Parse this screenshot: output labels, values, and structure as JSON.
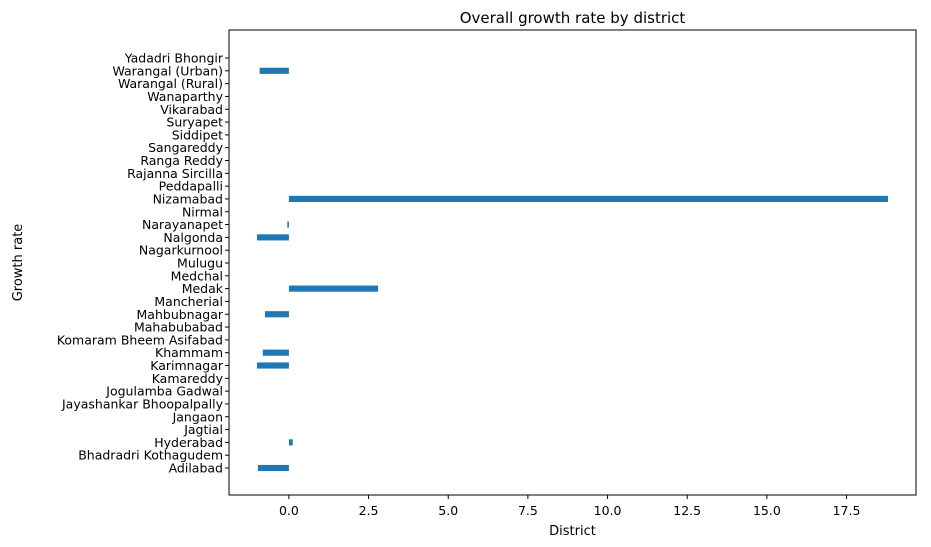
{
  "chart_data": {
    "type": "bar",
    "orientation": "horizontal",
    "title": "Overall growth rate by district",
    "xlabel": "District",
    "ylabel": "Growth rate",
    "xlim": [
      -1.88,
      19.68
    ],
    "x_ticks": [
      0.0,
      2.5,
      5.0,
      7.5,
      10.0,
      12.5,
      15.0,
      17.5
    ],
    "x_tick_labels": [
      "0.0",
      "2.5",
      "5.0",
      "7.5",
      "10.0",
      "12.5",
      "15.0",
      "17.5"
    ],
    "bar_color": "#1f77b4",
    "grid": false,
    "categories": [
      "Adilabad",
      "Bhadradri Kothagudem",
      "Hyderabad",
      "Jagtial ",
      "Jangaon ",
      "Jayashankar Bhoopalpally",
      "Jogulamba Gadwal ",
      "Kamareddy ",
      "Karimnagar ",
      "Khammam",
      "Komaram Bheem Asifabad",
      "Mahabubabad ",
      "Mahbubnagar",
      "Mancherial",
      "Medak ",
      "Medchal ",
      "Mulugu",
      "Nagarkurnool ",
      "Nalgonda",
      "Narayanapet",
      "Nirmal",
      "Nizamabad",
      "Peddapalli",
      "Rajanna Sircilla ",
      "Ranga Reddy",
      "Sangareddy ",
      "Siddipet",
      "Suryapet",
      "Vikarabad",
      "Wanaparthy ",
      "Warangal (Rural)",
      "Warangal (Urban)",
      "Yadadri Bhongir"
    ],
    "values": [
      -0.97,
      0,
      0.12,
      0,
      0,
      0,
      0,
      0,
      -1.0,
      -0.82,
      0,
      0,
      -0.75,
      0,
      2.8,
      0,
      0,
      0,
      -1.0,
      -0.05,
      0,
      18.8,
      0,
      0,
      0,
      0,
      0,
      0,
      0,
      0,
      0,
      -0.92,
      0
    ]
  }
}
